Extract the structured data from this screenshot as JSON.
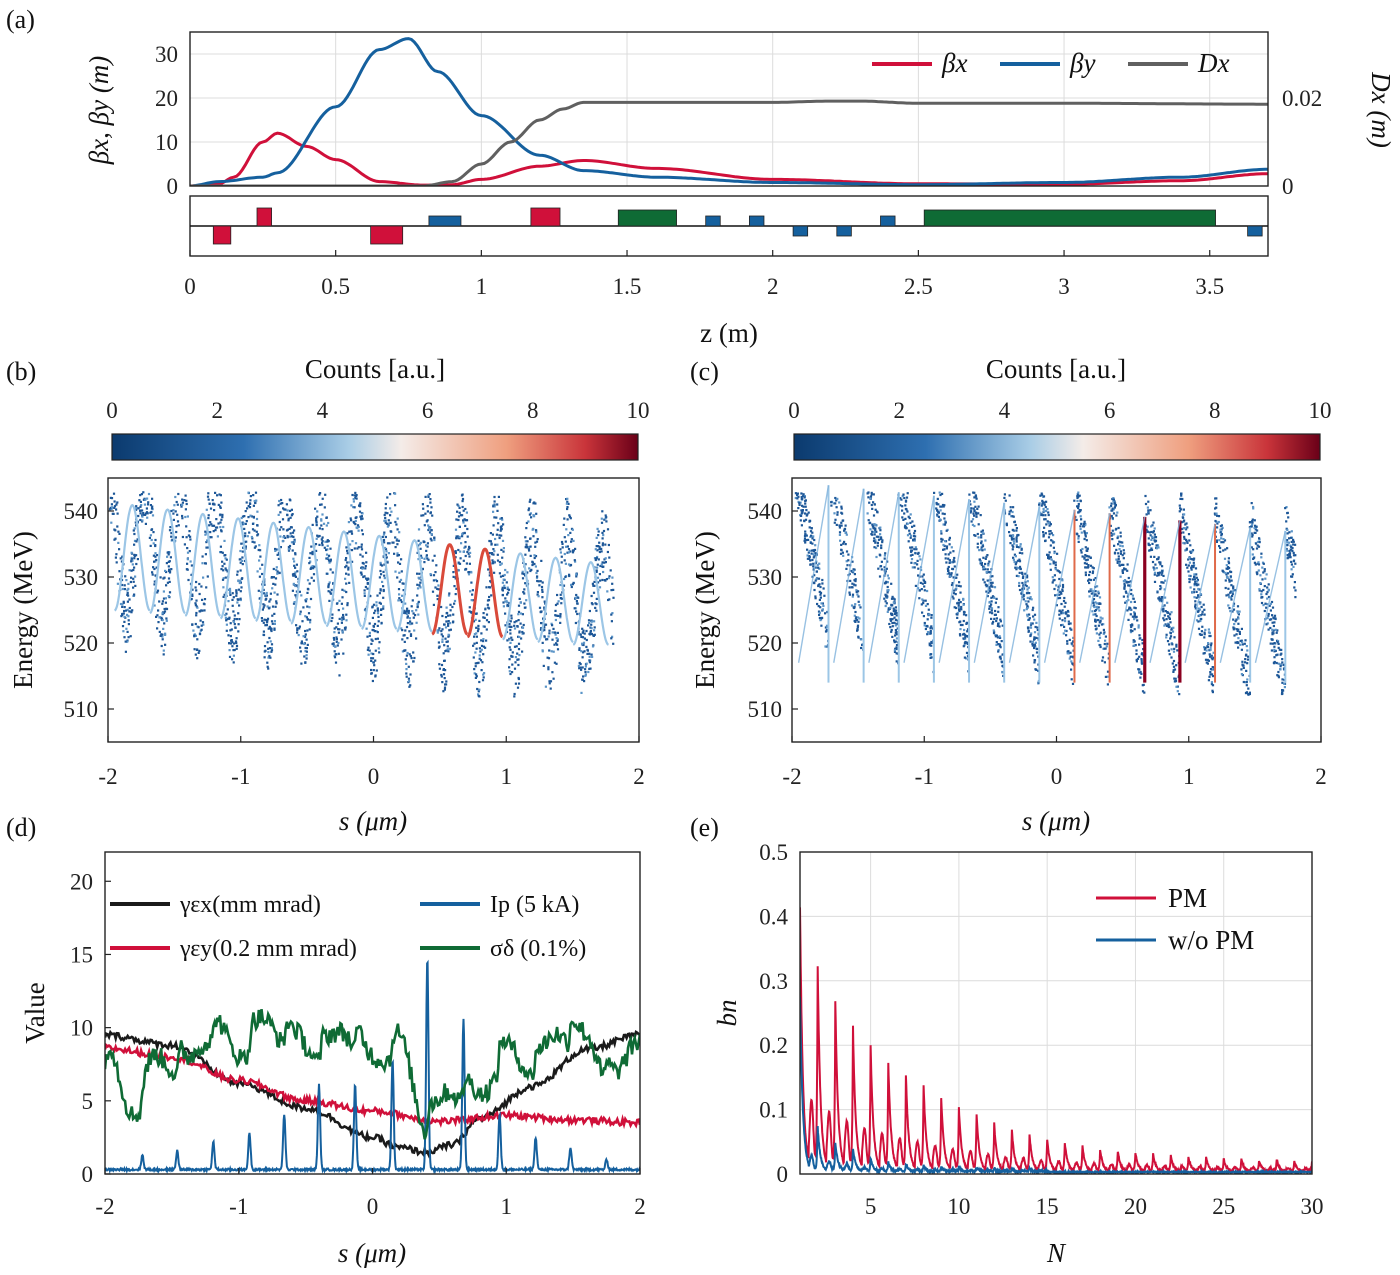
{
  "colors": {
    "red": "#d0103a",
    "blue": "#15609e",
    "gray": "#606060",
    "green": "#0f6b35",
    "black": "#1a1a1a"
  },
  "panel_labels": [
    "(a)",
    "(b)",
    "(c)",
    "(d)",
    "(e)"
  ],
  "chart_data": [
    {
      "id": "a",
      "type": "line",
      "xlabel": "z (m)",
      "ylabel_left": "βx, βy (m)",
      "ylabel_right": "Dx (m)",
      "xlim": [
        0,
        3.7
      ],
      "ylim_left": [
        0,
        35
      ],
      "ylim_right": [
        0,
        0.035
      ],
      "xticks": [
        "0",
        "0.5",
        "1",
        "1.5",
        "2",
        "2.5",
        "3",
        "3.5"
      ],
      "yticks_left": [
        "0",
        "10",
        "20",
        "30"
      ],
      "yticks_right": [
        "0",
        "0.02"
      ],
      "legend": [
        "βx",
        "βy",
        "Dx"
      ],
      "legend_position": "top-right",
      "grid": true,
      "series": [
        {
          "name": "βx",
          "color": "red",
          "x": [
            0,
            0.1,
            0.15,
            0.25,
            0.3,
            0.4,
            0.5,
            0.65,
            0.8,
            0.9,
            1.0,
            1.2,
            1.35,
            1.6,
            2.0,
            2.5,
            3.0,
            3.4,
            3.7
          ],
          "y": [
            0,
            0.5,
            2,
            10,
            12,
            9,
            6,
            1,
            0.2,
            0.3,
            1.5,
            4.5,
            5.8,
            4.0,
            1.5,
            0.5,
            0.4,
            1.2,
            2.8
          ]
        },
        {
          "name": "βy",
          "color": "blue",
          "x": [
            0,
            0.1,
            0.25,
            0.3,
            0.5,
            0.65,
            0.75,
            0.85,
            1.0,
            1.2,
            1.35,
            1.6,
            2.0,
            2.5,
            3.0,
            3.4,
            3.7
          ],
          "y": [
            0,
            1,
            2,
            3,
            18,
            31,
            33.5,
            26,
            16,
            7,
            3.5,
            2,
            0.8,
            0.3,
            0.8,
            2,
            3.8
          ]
        },
        {
          "name": "Dx",
          "color": "gray",
          "x": [
            0,
            0.8,
            0.9,
            1.0,
            1.1,
            1.2,
            1.28,
            1.35,
            1.6,
            2.0,
            2.2,
            2.3,
            2.5,
            3.0,
            3.7
          ],
          "y": [
            0,
            0,
            0.001,
            0.005,
            0.01,
            0.015,
            0.0175,
            0.019,
            0.019,
            0.019,
            0.0193,
            0.0193,
            0.0188,
            0.0188,
            0.0186
          ]
        }
      ],
      "lattice": [
        {
          "kind": "quad-focus",
          "color": "red",
          "z0": 0.08,
          "z1": 0.14,
          "dir": "down"
        },
        {
          "kind": "quad-focus",
          "color": "red",
          "z0": 0.23,
          "z1": 0.28,
          "dir": "up"
        },
        {
          "kind": "quad-focus",
          "color": "red",
          "z0": 0.62,
          "z1": 0.73,
          "dir": "down"
        },
        {
          "kind": "corrector",
          "color": "blue",
          "z0": 0.82,
          "z1": 0.93,
          "dir": "up"
        },
        {
          "kind": "quad-focus",
          "color": "red",
          "z0": 1.17,
          "z1": 1.27,
          "dir": "up"
        },
        {
          "kind": "undulator",
          "color": "green",
          "z0": 1.47,
          "z1": 1.67,
          "dir": "up"
        },
        {
          "kind": "corrector",
          "color": "blue",
          "z0": 1.77,
          "z1": 1.82,
          "dir": "up"
        },
        {
          "kind": "corrector",
          "color": "blue",
          "z0": 1.92,
          "z1": 1.97,
          "dir": "up"
        },
        {
          "kind": "corrector",
          "color": "blue",
          "z0": 2.07,
          "z1": 2.12,
          "dir": "down"
        },
        {
          "kind": "corrector",
          "color": "blue",
          "z0": 2.22,
          "z1": 2.27,
          "dir": "down"
        },
        {
          "kind": "corrector",
          "color": "blue",
          "z0": 2.37,
          "z1": 2.42,
          "dir": "up"
        },
        {
          "kind": "undulator",
          "color": "green",
          "z0": 2.52,
          "z1": 3.52,
          "dir": "up"
        },
        {
          "kind": "corrector",
          "color": "blue",
          "z0": 3.63,
          "z1": 3.68,
          "dir": "down"
        }
      ]
    },
    {
      "id": "b",
      "type": "heatmap",
      "colorbar_label": "Counts [a.u.]",
      "colorbar_ticks": [
        "0",
        "2",
        "4",
        "6",
        "8",
        "10"
      ],
      "clim": [
        0,
        10
      ],
      "xlabel": "s (μm)",
      "ylabel": "Energy (MeV)",
      "xlim": [
        -2,
        2
      ],
      "ylim": [
        505,
        545
      ],
      "xticks": [
        "-2",
        "-1",
        "0",
        "1",
        "2"
      ],
      "yticks": [
        "510",
        "520",
        "530",
        "540"
      ],
      "structure": "sinusoidal",
      "n_bunches": 14,
      "energy_band": [
        513,
        541
      ]
    },
    {
      "id": "c",
      "type": "heatmap",
      "colorbar_label": "Counts [a.u.]",
      "colorbar_ticks": [
        "0",
        "2",
        "4",
        "6",
        "8",
        "10"
      ],
      "clim": [
        0,
        10
      ],
      "xlabel": "s (μm)",
      "ylabel": "Energy (MeV)",
      "xlim": [
        -2,
        2
      ],
      "ylim": [
        505,
        545
      ],
      "xticks": [
        "-2",
        "-1",
        "0",
        "1",
        "2"
      ],
      "yticks": [
        "510",
        "520",
        "530",
        "540"
      ],
      "structure": "sawtooth",
      "n_bunches": 14,
      "energy_band": [
        513,
        541
      ]
    },
    {
      "id": "d",
      "type": "line",
      "xlabel": "s (μm)",
      "ylabel": "Value",
      "xlim": [
        -2,
        2
      ],
      "ylim": [
        0,
        22
      ],
      "xticks": [
        "-2",
        "-1",
        "0",
        "1",
        "2"
      ],
      "yticks": [
        "0",
        "5",
        "10",
        "15",
        "20"
      ],
      "legend": [
        "γεx(mm mrad)",
        "Ip (5 kA)",
        "γεy(0.2 mm mrad)",
        "σδ (0.1%)"
      ],
      "legend_position": "top",
      "grid": false,
      "series": [
        {
          "name": "γεx(mm mrad)",
          "color": "black",
          "x": [
            -2,
            -1.5,
            -1.0,
            -0.5,
            0,
            0.2,
            0.4,
            0.6,
            0.8,
            1.2,
            1.6,
            2.0
          ],
          "y": [
            9.5,
            8.8,
            6.2,
            4.5,
            2.5,
            1.8,
            1.5,
            2.0,
            3.8,
            6.0,
            8.5,
            9.5
          ]
        },
        {
          "name": "γεy(0.2 mm mrad)",
          "color": "red",
          "x": [
            -2,
            -1.5,
            -1.0,
            -0.5,
            0,
            0.5,
            1.0,
            1.5,
            2.0
          ],
          "y": [
            8.6,
            8.0,
            6.4,
            5.0,
            4.3,
            3.6,
            4.0,
            3.7,
            3.5
          ]
        },
        {
          "name": "Ip (5 kA)",
          "color": "blue",
          "peaks_s": [
            -1.72,
            -1.46,
            -1.19,
            -0.92,
            -0.66,
            -0.4,
            -0.13,
            0.15,
            0.41,
            0.68,
            0.95,
            1.22,
            1.48,
            1.75
          ],
          "peaks_v": [
            1.0,
            1.3,
            1.9,
            2.5,
            3.8,
            5.8,
            5.8,
            7.5,
            14.5,
            10.3,
            3.8,
            2.2,
            1.5,
            0.7
          ],
          "baseline": 0.3
        },
        {
          "name": "σδ (0.1%)",
          "color": "green",
          "x": [
            -2,
            -1.8,
            -1.6,
            -1.4,
            -1.2,
            -1.0,
            -0.8,
            -0.6,
            -0.4,
            -0.2,
            0,
            0.2,
            0.4,
            0.6,
            0.8,
            1.0,
            1.2,
            1.4,
            1.6,
            1.8,
            2.0
          ],
          "y": [
            8.5,
            4.5,
            8.0,
            7.5,
            10.0,
            8.5,
            10.5,
            9.5,
            8.5,
            10.0,
            8.0,
            9.0,
            3.8,
            6.0,
            5.5,
            8.5,
            7.5,
            10.0,
            9.5,
            6.5,
            10.0
          ]
        }
      ]
    },
    {
      "id": "e",
      "type": "line",
      "xlabel": "N",
      "ylabel": "bn",
      "xlim": [
        1,
        30
      ],
      "ylim": [
        0,
        0.5
      ],
      "xticks": [
        "5",
        "10",
        "15",
        "20",
        "25",
        "30"
      ],
      "yticks": [
        "0",
        "0.1",
        "0.2",
        "0.3",
        "0.4",
        "0.5"
      ],
      "legend": [
        "PM",
        "w/o PM"
      ],
      "legend_position": "top-right",
      "grid": true,
      "series": [
        {
          "name": "PM",
          "color": "red",
          "peaks_n": [
            1,
            2,
            3,
            4,
            5,
            6,
            7,
            8,
            9,
            10,
            11,
            12,
            13,
            14,
            15,
            16,
            17,
            18,
            19,
            20,
            21,
            22,
            23,
            24,
            25,
            26,
            27,
            28,
            29,
            30
          ],
          "peaks_v": [
            0.41,
            0.32,
            0.265,
            0.225,
            0.195,
            0.17,
            0.15,
            0.135,
            0.115,
            0.1,
            0.09,
            0.075,
            0.065,
            0.058,
            0.05,
            0.045,
            0.04,
            0.035,
            0.032,
            0.03,
            0.028,
            0.025,
            0.023,
            0.022,
            0.02,
            0.02,
            0.018,
            0.018,
            0.016,
            0.015
          ]
        },
        {
          "name": "w/o PM",
          "color": "blue",
          "peaks_n": [
            1,
            2,
            3,
            4,
            5,
            6,
            7,
            8,
            9,
            10,
            11,
            12,
            13,
            14,
            15
          ],
          "peaks_v": [
            0.27,
            0.07,
            0.045,
            0.035,
            0.02,
            0.015,
            0.012,
            0.01,
            0.008,
            0.008,
            0.006,
            0.006,
            0.005,
            0.005,
            0.004
          ]
        }
      ]
    }
  ]
}
